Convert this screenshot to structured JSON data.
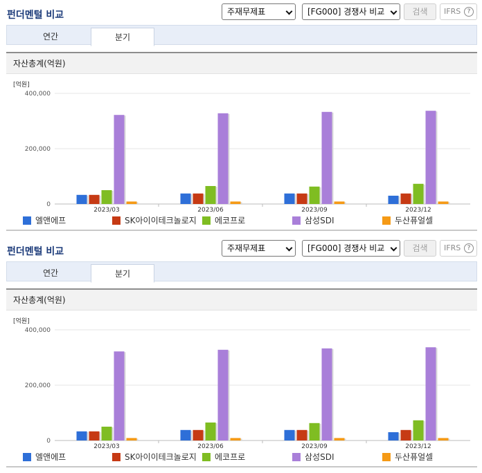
{
  "panels": [
    {
      "title": "펀더멘털 비교",
      "select1": "주재무제표",
      "select2": "[FG000] 경쟁사 비교",
      "search_label": "검색",
      "ifrs_label": "IFRS",
      "help_label": "?",
      "tabs": [
        {
          "label": "연간"
        },
        {
          "label": "분기"
        }
      ],
      "active_tab": "분기",
      "chart_header": "자산총계(억원)"
    },
    {
      "title": "펀더멘털 비교",
      "select1": "주재무제표",
      "select2": "[FG000] 경쟁사 비교",
      "search_label": "검색",
      "ifrs_label": "IFRS",
      "help_label": "?",
      "tabs": [
        {
          "label": "연간"
        },
        {
          "label": "분기"
        }
      ],
      "active_tab": "분기",
      "chart_header": "자산총계(억원)"
    }
  ],
  "chart_data": [
    {
      "type": "bar",
      "title": "자산총계(억원)",
      "unit_label": "[억원]",
      "categories": [
        "2023/03",
        "2023/06",
        "2023/09",
        "2023/12"
      ],
      "ylim": [
        0,
        400000
      ],
      "yticks": [
        "400,000",
        "200,000",
        "0"
      ],
      "ytick_values": [
        400000,
        200000,
        0
      ],
      "grid": true,
      "legend_position": "bottom",
      "series": [
        {
          "name": "엘앤에프",
          "color": "#2e6fd8",
          "values": [
            33000,
            38000,
            38000,
            30000
          ]
        },
        {
          "name": "SK아이이테크놀로지",
          "color": "#c63a14",
          "values": [
            33000,
            38000,
            38000,
            38000
          ]
        },
        {
          "name": "에코프로",
          "color": "#7fbd22",
          "values": [
            50000,
            65000,
            63000,
            73000
          ]
        },
        {
          "name": "삼성SDI",
          "color": "#a97fd9",
          "values": [
            322000,
            328000,
            333000,
            337000
          ]
        },
        {
          "name": "두산퓨얼셀",
          "color": "#f59a16",
          "values": [
            9000,
            9000,
            9000,
            9000
          ]
        }
      ]
    },
    {
      "type": "bar",
      "title": "자산총계(억원)",
      "unit_label": "[억원]",
      "categories": [
        "2023/03",
        "2023/06",
        "2023/09",
        "2023/12"
      ],
      "ylim": [
        0,
        400000
      ],
      "yticks": [
        "400,000",
        "200,000",
        "0"
      ],
      "ytick_values": [
        400000,
        200000,
        0
      ],
      "grid": true,
      "legend_position": "bottom",
      "series": [
        {
          "name": "엘앤에프",
          "color": "#2e6fd8",
          "values": [
            33000,
            38000,
            38000,
            30000
          ]
        },
        {
          "name": "SK아이이테크놀로지",
          "color": "#c63a14",
          "values": [
            33000,
            38000,
            38000,
            38000
          ]
        },
        {
          "name": "에코프로",
          "color": "#7fbd22",
          "values": [
            50000,
            65000,
            63000,
            73000
          ]
        },
        {
          "name": "삼성SDI",
          "color": "#a97fd9",
          "values": [
            322000,
            328000,
            333000,
            337000
          ]
        },
        {
          "name": "두산퓨얼셀",
          "color": "#f59a16",
          "values": [
            9000,
            9000,
            9000,
            9000
          ]
        }
      ]
    }
  ]
}
